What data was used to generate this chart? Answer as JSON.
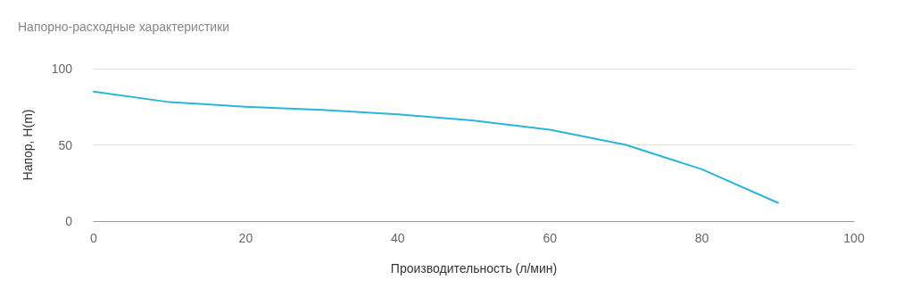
{
  "chart_data": {
    "type": "line",
    "title": "Напорно-расходные характеристики",
    "xlabel": "Производительность (л/мин)",
    "ylabel": "Напор, H(m)",
    "x": [
      0,
      10,
      20,
      30,
      40,
      50,
      60,
      70,
      80,
      90
    ],
    "series": [
      {
        "color": "#2bb5d8",
        "values": [
          85,
          78,
          75,
          73,
          70,
          66,
          60,
          50,
          34,
          12
        ]
      }
    ],
    "xlim": [
      0,
      100
    ],
    "xticks": [
      0,
      20,
      40,
      60,
      80,
      100
    ],
    "ylim": [
      0,
      100
    ],
    "yticks": [
      0,
      50,
      100
    ],
    "grid": "y",
    "marker": "none",
    "line_style": "solid"
  }
}
